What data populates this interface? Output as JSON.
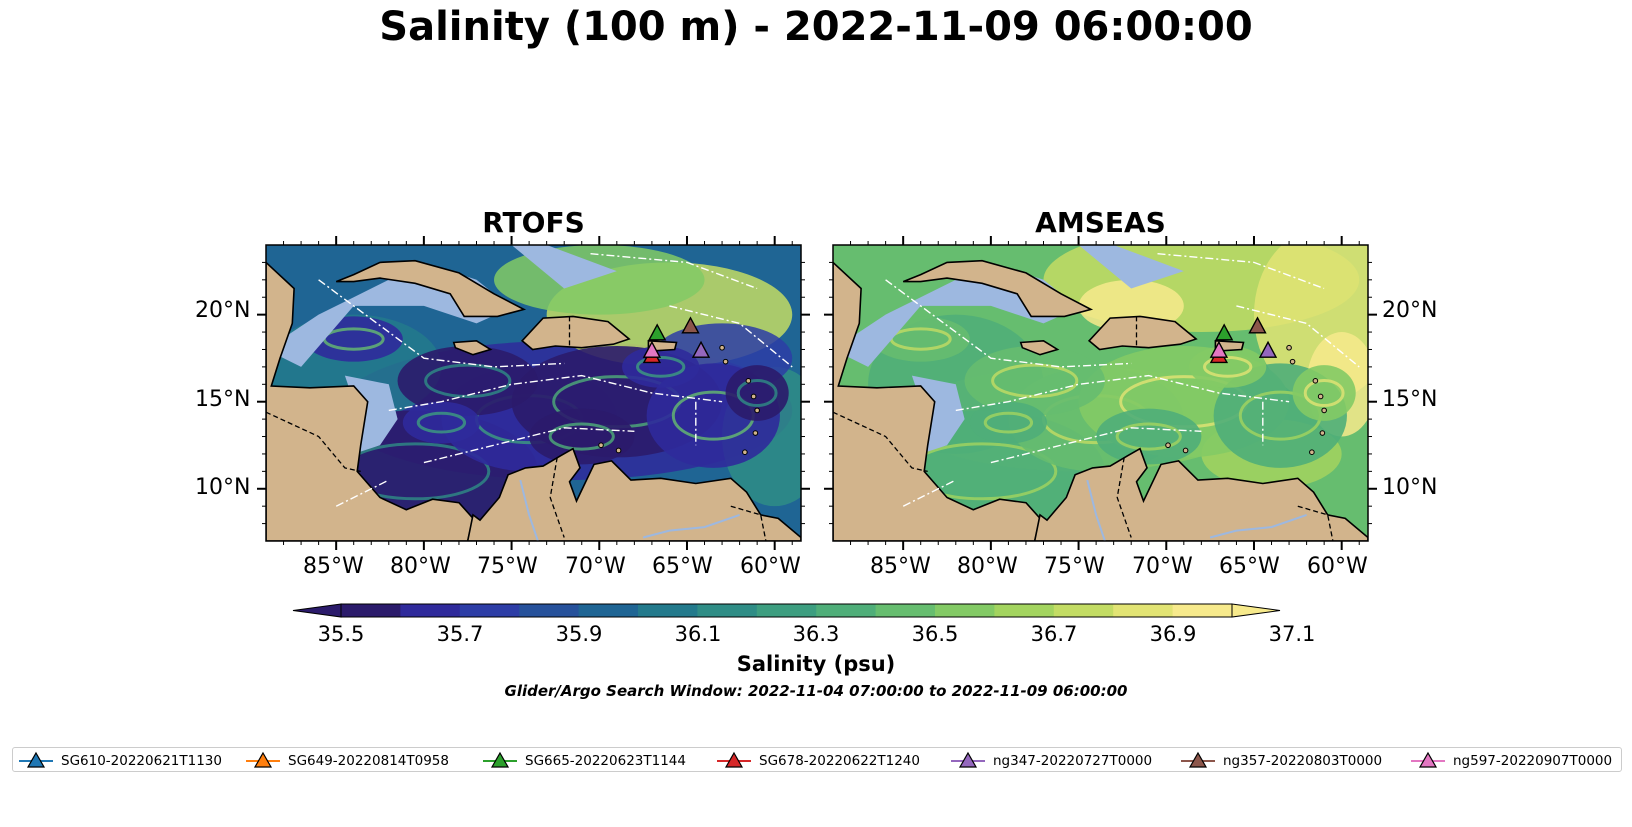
{
  "figure": {
    "title": "Salinity (100 m) - 2022-11-09 06:00:00",
    "search_window": "Glider/Argo Search Window: 2022-11-04 07:00:00 to 2022-11-09 06:00:00"
  },
  "panels": [
    {
      "title": "RTOFS",
      "palette": "low"
    },
    {
      "title": "AMSEAS",
      "palette": "high"
    }
  ],
  "axes": {
    "lon_ticks": [
      "85°W",
      "80°W",
      "75°W",
      "70°W",
      "65°W",
      "60°W"
    ],
    "lat_ticks": [
      "20°N",
      "15°N",
      "10°N"
    ]
  },
  "colorbar": {
    "label": "Salinity (psu)",
    "ticks": [
      "35.5",
      "35.7",
      "35.9",
      "36.1",
      "36.3",
      "36.5",
      "36.7",
      "36.9",
      "37.1"
    ],
    "colors": [
      "#2b1b6b",
      "#2f2a9b",
      "#2d3da6",
      "#26519b",
      "#1f6594",
      "#237a8c",
      "#2f8d86",
      "#3d9e80",
      "#4fae79",
      "#66bd6f",
      "#83ca65",
      "#a3d45f",
      "#c3dc64",
      "#e2e474",
      "#f7ea8c"
    ]
  },
  "colors": {
    "land": "#d2b48c",
    "ocean_shallow": "#9db8e0",
    "marker_edge": "#000000"
  },
  "legend": [
    {
      "label": "SG610-20220621T1130",
      "color": "#1f77b4"
    },
    {
      "label": "SG649-20220814T0958",
      "color": "#ff7f0e"
    },
    {
      "label": "SG665-20220623T1144",
      "color": "#2ca02c"
    },
    {
      "label": "SG678-20220622T1240",
      "color": "#d62728"
    },
    {
      "label": "ng347-20220727T0000",
      "color": "#9467bd"
    },
    {
      "label": "ng357-20220803T0000",
      "color": "#8c564b"
    },
    {
      "label": "ng597-20220907T0000",
      "color": "#e377c2"
    }
  ],
  "markers": [
    {
      "id": "ng357",
      "lon": -64.8,
      "lat": 19.3,
      "color": "#8c564b"
    },
    {
      "id": "SG665",
      "lon": -66.7,
      "lat": 18.9,
      "color": "#2ca02c"
    },
    {
      "id": "ng347",
      "lon": -64.2,
      "lat": 17.9,
      "color": "#9467bd"
    },
    {
      "id": "SG678",
      "lon": -67.0,
      "lat": 17.6,
      "color": "#d62728"
    },
    {
      "id": "ng597",
      "lon": -67.0,
      "lat": 17.9,
      "color": "#e377c2"
    }
  ]
}
